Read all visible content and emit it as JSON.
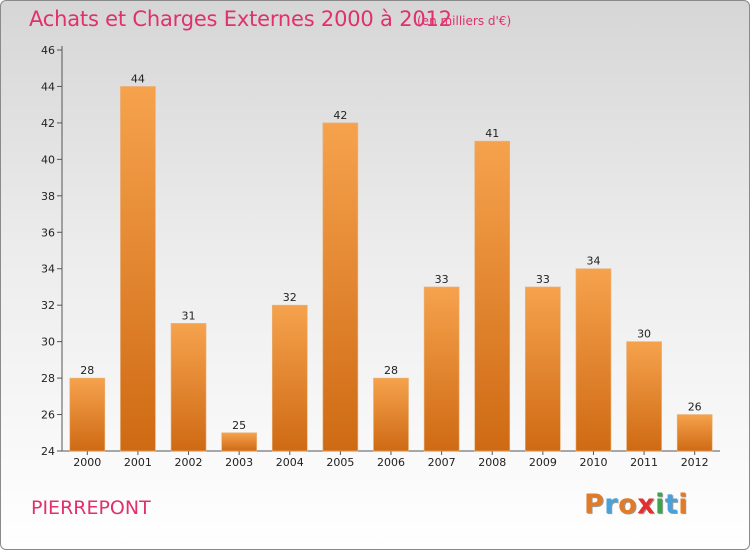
{
  "header": {
    "title": "Achats et Charges Externes 2000 à 2012",
    "subtitle": "(en milliers d'€)"
  },
  "footer": {
    "location": "PIERREPONT",
    "logo": "Proxiti"
  },
  "colors": {
    "accent": "#e0306e",
    "bar_top": "#f6a24d",
    "bar_bottom": "#cf6a14",
    "logo_letters": [
      "#e07b2a",
      "#4aa0d8",
      "#e07b2a",
      "#e03030",
      "#3aa648",
      "#4aa0d8",
      "#e07b2a"
    ]
  },
  "chart_data": {
    "type": "bar",
    "categories": [
      "2000",
      "2001",
      "2002",
      "2003",
      "2004",
      "2005",
      "2006",
      "2007",
      "2008",
      "2009",
      "2010",
      "2011",
      "2012"
    ],
    "values": [
      28,
      44,
      31,
      25,
      32,
      42,
      28,
      33,
      41,
      33,
      34,
      30,
      26
    ],
    "title": "Achats et Charges Externes 2000 à 2012",
    "xlabel": "",
    "ylabel": "",
    "ylim": [
      24,
      46
    ],
    "yticks": [
      24,
      26,
      28,
      30,
      32,
      34,
      36,
      38,
      40,
      42,
      44,
      46
    ],
    "grid": false,
    "legend": "none"
  }
}
